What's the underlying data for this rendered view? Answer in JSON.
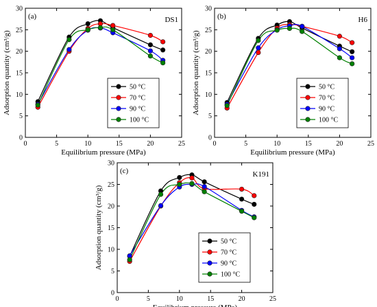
{
  "series_style": [
    {
      "name": "50 °C",
      "color": "#000000"
    },
    {
      "name": "70 °C",
      "color": "#ff0000"
    },
    {
      "name": "90 °C",
      "color": "#0000ff"
    },
    {
      "name": "100 °C",
      "color": "#008000"
    }
  ],
  "chart_data": [
    {
      "type": "line",
      "panel_label": "(a)",
      "sample_label": "DS1",
      "xlabel": "Equilibrium pressure (MPa)",
      "ylabel": "Adsorption quantity (cm³/g)",
      "xlim": [
        0,
        25
      ],
      "ylim": [
        0,
        30
      ],
      "xticks": [
        0,
        5,
        10,
        15,
        20,
        25
      ],
      "yticks": [
        0,
        5,
        10,
        15,
        20,
        25,
        30
      ],
      "legend_position": "lower-right",
      "x": [
        2,
        7,
        10,
        12,
        14,
        20,
        22
      ],
      "series": [
        {
          "name": "50 °C",
          "values": [
            8.3,
            23.3,
            26.4,
            27.1,
            25.5,
            21.5,
            20.3
          ]
        },
        {
          "name": "70 °C",
          "values": [
            7.0,
            20.0,
            25.3,
            26.4,
            26.0,
            23.7,
            22.2
          ]
        },
        {
          "name": "90 °C",
          "values": [
            7.7,
            20.4,
            24.9,
            25.4,
            24.3,
            20.1,
            17.9
          ]
        },
        {
          "name": "100 °C",
          "values": [
            7.5,
            22.7,
            25.0,
            25.5,
            25.0,
            18.9,
            17.3
          ]
        }
      ]
    },
    {
      "type": "line",
      "panel_label": "(b)",
      "sample_label": "H6",
      "xlabel": "Equilibrium pressure (MPa)",
      "ylabel": "Adsorption quantity (cm³/g)",
      "xlim": [
        0,
        25
      ],
      "ylim": [
        0,
        30
      ],
      "xticks": [
        0,
        5,
        10,
        15,
        20,
        25
      ],
      "yticks": [
        0,
        5,
        10,
        15,
        20,
        25,
        30
      ],
      "legend_position": "lower-right",
      "x": [
        2,
        7,
        10,
        12,
        14,
        20,
        22
      ],
      "series": [
        {
          "name": "50 °C",
          "values": [
            8.1,
            23.0,
            26.1,
            26.9,
            25.4,
            21.2,
            19.9
          ]
        },
        {
          "name": "70 °C",
          "values": [
            6.8,
            19.7,
            25.4,
            26.2,
            25.8,
            23.5,
            22.0
          ]
        },
        {
          "name": "90 °C",
          "values": [
            7.7,
            20.8,
            25.0,
            25.9,
            25.8,
            20.6,
            18.5
          ]
        },
        {
          "name": "100 °C",
          "values": [
            7.4,
            22.5,
            24.9,
            25.3,
            24.6,
            18.5,
            17.1
          ]
        }
      ]
    },
    {
      "type": "line",
      "panel_label": "(c)",
      "sample_label": "K191",
      "xlabel": "Equilibrium pressure (MPa)",
      "ylabel": "Adsorption quantity (cm³/g)",
      "xlim": [
        0,
        25
      ],
      "ylim": [
        0,
        30
      ],
      "xticks": [
        0,
        5,
        10,
        15,
        20,
        25
      ],
      "yticks": [
        0,
        5,
        10,
        15,
        20,
        25,
        30
      ],
      "legend_position": "lower-right",
      "x": [
        2,
        7,
        10,
        12,
        14,
        20,
        22
      ],
      "series": [
        {
          "name": "50 °C",
          "values": [
            8.4,
            23.5,
            26.6,
            27.2,
            25.6,
            21.6,
            20.4
          ]
        },
        {
          "name": "70 °C",
          "values": [
            7.2,
            20.0,
            25.4,
            26.5,
            24.0,
            23.9,
            22.4
          ]
        },
        {
          "name": "90 °C",
          "values": [
            8.5,
            20.1,
            24.4,
            25.0,
            24.5,
            19.0,
            17.5
          ]
        },
        {
          "name": "100 °C",
          "values": [
            7.6,
            22.7,
            25.0,
            25.2,
            23.3,
            18.8,
            17.3
          ]
        }
      ]
    }
  ]
}
